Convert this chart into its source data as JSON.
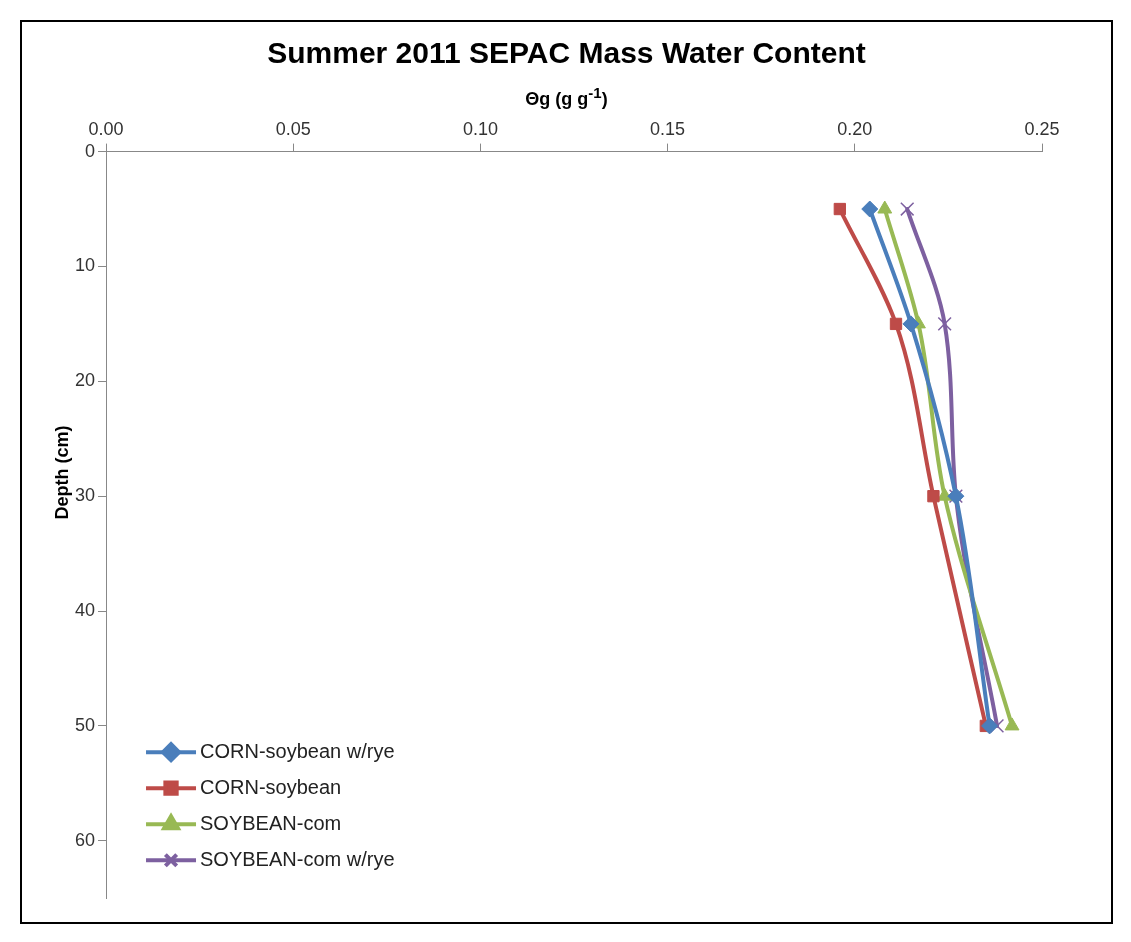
{
  "chart_data": {
    "type": "line",
    "title": "Summer 2011 SEPAC Mass Water Content",
    "xlabel": "Θg (g g$^{-1}$)",
    "ylabel": "Depth (cm)",
    "xlim": [
      0,
      0.25
    ],
    "xticks": [
      {
        "value": 0,
        "label": "0.00"
      },
      {
        "value": 0.05,
        "label": "0.05"
      },
      {
        "value": 0.1,
        "label": "0.10"
      },
      {
        "value": 0.15,
        "label": "0.15"
      },
      {
        "value": 0.2,
        "label": "0.20"
      },
      {
        "value": 0.25,
        "label": "0.25"
      }
    ],
    "ylim": [
      65,
      0
    ],
    "yticks": [
      0,
      10,
      20,
      30,
      40,
      50,
      60
    ],
    "grid": false,
    "legend": "bottom left",
    "series": [
      {
        "name": "CORN-soybean w/rye",
        "color": "#4a7ebb",
        "marker": "diamond",
        "x": [
          0.204,
          0.215,
          0.227,
          0.236
        ],
        "values": [
          5,
          15,
          30,
          50
        ]
      },
      {
        "name": "CORN-soybean",
        "color": "#be4b48",
        "marker": "square",
        "x": [
          0.196,
          0.211,
          0.221,
          0.235
        ],
        "values": [
          5,
          15,
          30,
          50
        ]
      },
      {
        "name": "SOYBEAN-com",
        "color": "#98b954",
        "marker": "triangle",
        "x": [
          0.208,
          0.217,
          0.224,
          0.242
        ],
        "values": [
          5,
          15,
          30,
          50
        ]
      },
      {
        "name": "SOYBEAN-com w/rye",
        "color": "#7d60a0",
        "marker": "cross",
        "x": [
          0.214,
          0.224,
          0.227,
          0.238
        ],
        "values": [
          5,
          15,
          30,
          50
        ]
      }
    ]
  }
}
